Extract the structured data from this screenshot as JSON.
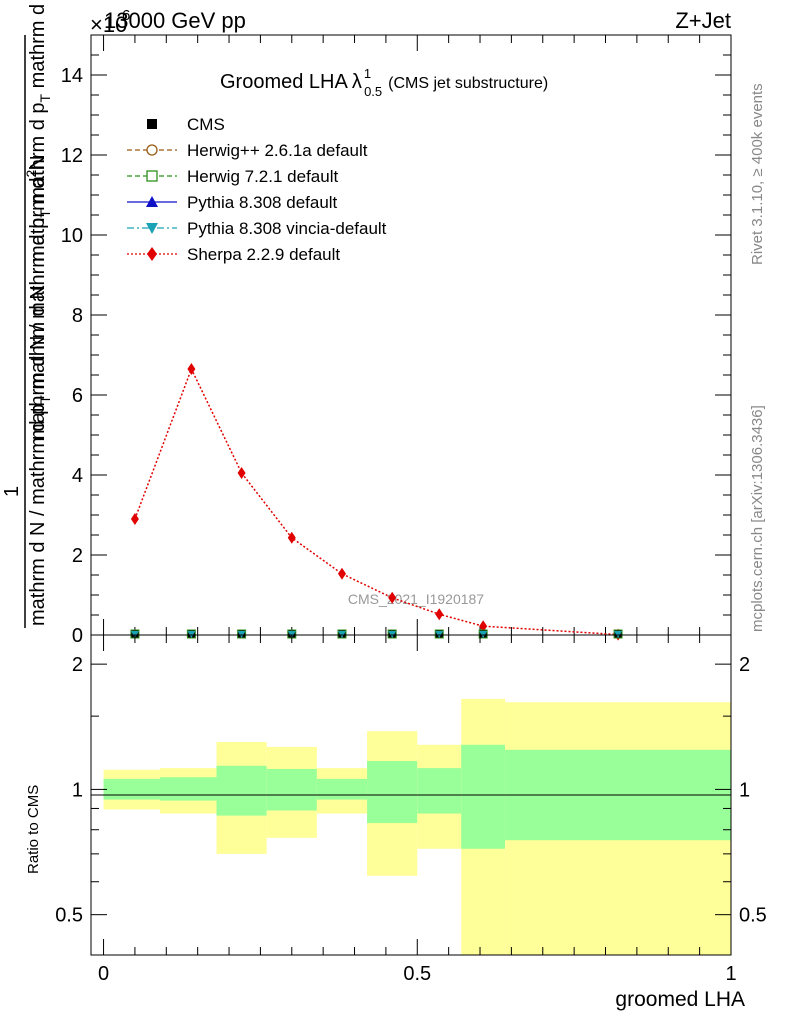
{
  "header": {
    "left": "13000 GeV pp",
    "right": "Z+Jet",
    "exponent": "×10",
    "exponent_power": "6"
  },
  "side_labels": {
    "rivet": "Rivet 3.1.10, ≥ 400k events",
    "mcplots": "mcplots.cern.ch [arXiv:1306.3436]"
  },
  "watermark": "CMS_2021_I1920187",
  "colors": {
    "herwigpp": "#9a5b12",
    "herwig7": "#2f8f1e",
    "pythia": "#1010c8",
    "vincia": "#1aa3b5",
    "sherpa": "#e00000",
    "band_outer": "#ffff99",
    "band_inner": "#99ff99"
  },
  "chart_data": [
    {
      "type": "line",
      "title": {
        "main": "Groomed LHA",
        "lambda": "λ",
        "sup": "1",
        "sub": "0.5",
        "suffix": "(CMS jet substructure)"
      },
      "ylabel": {
        "line1": "mathrm d N / mathrm d p",
        "line1_sub": "T",
        "line1_tail": " mathrm d p",
        "line1_tail_sub": "T",
        "line1_end": " mathrm d lambda",
        "num": "1",
        "den": "mathrm d N / mathrm d p",
        "den_sub": "T",
        "den_end": " mathrm d N",
        "numerator_full": "mathrm d",
        "numerator_sup": "2",
        "numerator_end": "N"
      },
      "ylim": [
        0,
        15
      ],
      "yticks": [
        0,
        2,
        4,
        6,
        8,
        10,
        12,
        14
      ],
      "ytick_labels": [
        "0",
        "2",
        "4",
        "6",
        "8",
        "10",
        "12",
        "14"
      ],
      "xlim": [
        -0.02,
        1.0
      ],
      "legend": {
        "position": "top-left",
        "entries": [
          {
            "label": "CMS",
            "key": "cms"
          },
          {
            "label": "Herwig++ 2.6.1a default",
            "key": "herwigpp"
          },
          {
            "label": "Herwig 7.2.1 default",
            "key": "herwig7"
          },
          {
            "label": "Pythia 8.308 default",
            "key": "pythia"
          },
          {
            "label": "Pythia 8.308 vincia-default",
            "key": "vincia"
          },
          {
            "label": "Sherpa 2.2.9 default",
            "key": "sherpa"
          }
        ]
      },
      "series": [
        {
          "name": "Sherpa 2.2.9 default",
          "x": [
            0.05,
            0.14,
            0.22,
            0.3,
            0.38,
            0.46,
            0.535,
            0.605,
            0.82
          ],
          "y": [
            2.9,
            6.65,
            4.05,
            2.43,
            1.53,
            0.93,
            0.52,
            0.22,
            0.01
          ]
        },
        {
          "name": "CMS",
          "x": [
            0.05,
            0.14,
            0.22,
            0.3,
            0.38,
            0.46,
            0.535,
            0.605,
            0.82
          ],
          "y": [
            0.005,
            0.005,
            0.005,
            0.005,
            0.005,
            0.005,
            0.005,
            0.005,
            0.005
          ]
        }
      ]
    },
    {
      "type": "area",
      "ylabel": "Ratio to CMS",
      "xlabel": "groomed LHA",
      "xlim": [
        -0.02,
        1.0
      ],
      "ylim": [
        0.4,
        2.35
      ],
      "log_y": true,
      "yticks": [
        0.5,
        1,
        2
      ],
      "ytick_labels": [
        "0.5",
        "1",
        "2"
      ],
      "xticks": [
        0,
        0.5,
        1
      ],
      "xtick_labels": [
        "0",
        "0.5",
        "1"
      ],
      "reference_line": 1,
      "bins": [
        {
          "x0": 0.0,
          "x1": 0.09,
          "outer": [
            0.895,
            1.115
          ],
          "inner": [
            0.945,
            1.06
          ]
        },
        {
          "x0": 0.09,
          "x1": 0.18,
          "outer": [
            0.875,
            1.125
          ],
          "inner": [
            0.94,
            1.07
          ]
        },
        {
          "x0": 0.18,
          "x1": 0.26,
          "outer": [
            0.7,
            1.3
          ],
          "inner": [
            0.865,
            1.14
          ]
        },
        {
          "x0": 0.26,
          "x1": 0.34,
          "outer": [
            0.765,
            1.265
          ],
          "inner": [
            0.89,
            1.12
          ]
        },
        {
          "x0": 0.34,
          "x1": 0.42,
          "outer": [
            0.875,
            1.125
          ],
          "inner": [
            0.945,
            1.06
          ]
        },
        {
          "x0": 0.42,
          "x1": 0.5,
          "outer": [
            0.62,
            1.38
          ],
          "inner": [
            0.83,
            1.17
          ]
        },
        {
          "x0": 0.5,
          "x1": 0.57,
          "outer": [
            0.72,
            1.28
          ],
          "inner": [
            0.875,
            1.125
          ]
        },
        {
          "x0": 0.57,
          "x1": 0.64,
          "outer": [
            0.38,
            1.65
          ],
          "inner": [
            0.72,
            1.28
          ]
        },
        {
          "x0": 0.64,
          "x1": 1.0,
          "outer": [
            0.38,
            1.62
          ],
          "inner": [
            0.755,
            1.245
          ]
        }
      ]
    }
  ]
}
